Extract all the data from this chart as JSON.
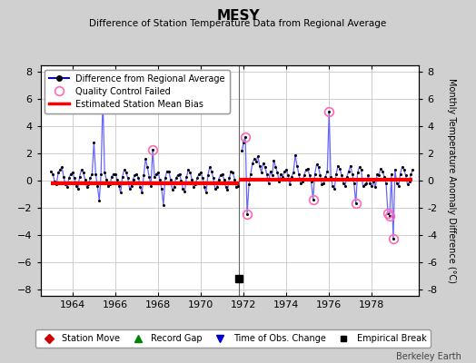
{
  "title": "MESY",
  "subtitle": "Difference of Station Temperature Data from Regional Average",
  "ylabel_right": "Monthly Temperature Anomaly Difference (°C)",
  "xlim": [
    1962.5,
    1980.2
  ],
  "ylim": [
    -8.5,
    8.5
  ],
  "yticks": [
    -8,
    -6,
    -4,
    -2,
    0,
    2,
    4,
    6,
    8
  ],
  "xticks": [
    1964,
    1966,
    1968,
    1970,
    1972,
    1974,
    1976,
    1978
  ],
  "background_color": "#d0d0d0",
  "plot_bg_color": "#ffffff",
  "grid_color": "#c8c8c8",
  "line_color": "#6666ff",
  "dot_color": "#000000",
  "bias_color": "#ff0000",
  "bias_value_seg1": -0.2,
  "bias_value_seg2": 0.1,
  "break_x": 1971.79,
  "empirical_break_x": 1971.79,
  "empirical_break_y": -7.2,
  "time_series": [
    [
      1963.0,
      0.7
    ],
    [
      1963.083,
      0.5
    ],
    [
      1963.167,
      -0.1
    ],
    [
      1963.25,
      -0.3
    ],
    [
      1963.333,
      0.6
    ],
    [
      1963.417,
      0.8
    ],
    [
      1963.5,
      1.0
    ],
    [
      1963.583,
      0.3
    ],
    [
      1963.667,
      -0.3
    ],
    [
      1963.75,
      -0.5
    ],
    [
      1963.833,
      0.2
    ],
    [
      1963.917,
      0.5
    ],
    [
      1964.0,
      0.6
    ],
    [
      1964.083,
      0.2
    ],
    [
      1964.167,
      -0.4
    ],
    [
      1964.25,
      -0.6
    ],
    [
      1964.333,
      0.3
    ],
    [
      1964.417,
      0.8
    ],
    [
      1964.5,
      0.6
    ],
    [
      1964.583,
      0.1
    ],
    [
      1964.667,
      -0.5
    ],
    [
      1964.75,
      -0.3
    ],
    [
      1964.833,
      0.2
    ],
    [
      1964.917,
      0.5
    ],
    [
      1965.0,
      2.8
    ],
    [
      1965.083,
      0.5
    ],
    [
      1965.167,
      -0.4
    ],
    [
      1965.25,
      -1.5
    ],
    [
      1965.333,
      0.5
    ],
    [
      1965.417,
      6.2
    ],
    [
      1965.5,
      0.6
    ],
    [
      1965.583,
      0.1
    ],
    [
      1965.667,
      -0.4
    ],
    [
      1965.75,
      -0.3
    ],
    [
      1965.833,
      0.3
    ],
    [
      1965.917,
      0.5
    ],
    [
      1966.0,
      0.5
    ],
    [
      1966.083,
      0.1
    ],
    [
      1966.167,
      -0.4
    ],
    [
      1966.25,
      -0.9
    ],
    [
      1966.333,
      0.3
    ],
    [
      1966.417,
      0.8
    ],
    [
      1966.5,
      0.6
    ],
    [
      1966.583,
      0.2
    ],
    [
      1966.667,
      -0.6
    ],
    [
      1966.75,
      -0.4
    ],
    [
      1966.833,
      0.1
    ],
    [
      1966.917,
      0.4
    ],
    [
      1967.0,
      0.5
    ],
    [
      1967.083,
      0.2
    ],
    [
      1967.167,
      -0.5
    ],
    [
      1967.25,
      -0.9
    ],
    [
      1967.333,
      0.4
    ],
    [
      1967.417,
      1.6
    ],
    [
      1967.5,
      1.0
    ],
    [
      1967.583,
      0.3
    ],
    [
      1967.667,
      -0.4
    ],
    [
      1967.75,
      2.3
    ],
    [
      1967.833,
      0.3
    ],
    [
      1967.917,
      0.5
    ],
    [
      1968.0,
      0.6
    ],
    [
      1968.083,
      0.1
    ],
    [
      1968.167,
      -0.6
    ],
    [
      1968.25,
      -1.8
    ],
    [
      1968.333,
      0.2
    ],
    [
      1968.417,
      0.7
    ],
    [
      1968.5,
      0.7
    ],
    [
      1968.583,
      0.1
    ],
    [
      1968.667,
      -0.7
    ],
    [
      1968.75,
      -0.5
    ],
    [
      1968.833,
      0.2
    ],
    [
      1968.917,
      0.4
    ],
    [
      1969.0,
      0.5
    ],
    [
      1969.083,
      0.0
    ],
    [
      1969.167,
      -0.6
    ],
    [
      1969.25,
      -0.8
    ],
    [
      1969.333,
      0.3
    ],
    [
      1969.417,
      0.8
    ],
    [
      1969.5,
      0.6
    ],
    [
      1969.583,
      0.1
    ],
    [
      1969.667,
      -0.5
    ],
    [
      1969.75,
      -0.3
    ],
    [
      1969.833,
      0.2
    ],
    [
      1969.917,
      0.5
    ],
    [
      1970.0,
      0.6
    ],
    [
      1970.083,
      0.2
    ],
    [
      1970.167,
      -0.5
    ],
    [
      1970.25,
      -0.9
    ],
    [
      1970.333,
      0.4
    ],
    [
      1970.417,
      1.0
    ],
    [
      1970.5,
      0.7
    ],
    [
      1970.583,
      0.2
    ],
    [
      1970.667,
      -0.6
    ],
    [
      1970.75,
      -0.5
    ],
    [
      1970.833,
      0.1
    ],
    [
      1970.917,
      0.4
    ],
    [
      1971.0,
      0.5
    ],
    [
      1971.083,
      0.1
    ],
    [
      1971.167,
      -0.5
    ],
    [
      1971.25,
      -0.7
    ],
    [
      1971.333,
      0.2
    ],
    [
      1971.417,
      0.7
    ],
    [
      1971.5,
      0.6
    ],
    [
      1971.583,
      0.1
    ],
    [
      1971.667,
      -0.5
    ],
    [
      1971.75,
      -0.4
    ],
    [
      1971.917,
      2.2
    ],
    [
      1972.0,
      2.8
    ],
    [
      1972.083,
      3.2
    ],
    [
      1972.167,
      -2.5
    ],
    [
      1972.25,
      -0.3
    ],
    [
      1972.333,
      0.5
    ],
    [
      1972.417,
      1.3
    ],
    [
      1972.5,
      1.6
    ],
    [
      1972.583,
      1.4
    ],
    [
      1972.667,
      1.8
    ],
    [
      1972.75,
      1.1
    ],
    [
      1972.833,
      0.6
    ],
    [
      1972.917,
      1.3
    ],
    [
      1973.0,
      1.0
    ],
    [
      1973.083,
      0.5
    ],
    [
      1973.167,
      -0.2
    ],
    [
      1973.25,
      0.7
    ],
    [
      1973.333,
      0.4
    ],
    [
      1973.417,
      1.5
    ],
    [
      1973.5,
      1.0
    ],
    [
      1973.583,
      0.6
    ],
    [
      1973.667,
      -0.1
    ],
    [
      1973.75,
      0.5
    ],
    [
      1973.833,
      0.3
    ],
    [
      1973.917,
      0.7
    ],
    [
      1974.0,
      0.8
    ],
    [
      1974.083,
      0.4
    ],
    [
      1974.167,
      -0.3
    ],
    [
      1974.25,
      0.3
    ],
    [
      1974.333,
      0.6
    ],
    [
      1974.417,
      1.9
    ],
    [
      1974.5,
      1.1
    ],
    [
      1974.583,
      0.5
    ],
    [
      1974.667,
      -0.2
    ],
    [
      1974.75,
      -0.1
    ],
    [
      1974.833,
      0.4
    ],
    [
      1974.917,
      0.8
    ],
    [
      1975.0,
      0.9
    ],
    [
      1975.083,
      0.4
    ],
    [
      1975.167,
      -0.1
    ],
    [
      1975.25,
      -1.4
    ],
    [
      1975.333,
      0.5
    ],
    [
      1975.417,
      1.2
    ],
    [
      1975.5,
      1.0
    ],
    [
      1975.583,
      0.4
    ],
    [
      1975.667,
      -0.3
    ],
    [
      1975.75,
      -0.2
    ],
    [
      1975.833,
      0.3
    ],
    [
      1975.917,
      0.7
    ],
    [
      1976.0,
      5.1
    ],
    [
      1976.083,
      0.3
    ],
    [
      1976.167,
      -0.4
    ],
    [
      1976.25,
      -0.6
    ],
    [
      1976.333,
      0.5
    ],
    [
      1976.417,
      1.1
    ],
    [
      1976.5,
      0.9
    ],
    [
      1976.583,
      0.4
    ],
    [
      1976.667,
      -0.2
    ],
    [
      1976.75,
      -0.4
    ],
    [
      1976.833,
      0.3
    ],
    [
      1976.917,
      0.7
    ],
    [
      1977.0,
      1.1
    ],
    [
      1977.083,
      0.5
    ],
    [
      1977.167,
      -0.2
    ],
    [
      1977.25,
      -1.7
    ],
    [
      1977.333,
      0.6
    ],
    [
      1977.417,
      1.0
    ],
    [
      1977.5,
      0.8
    ],
    [
      1977.583,
      -0.4
    ],
    [
      1977.667,
      -0.3
    ],
    [
      1977.75,
      -0.2
    ],
    [
      1977.833,
      0.4
    ],
    [
      1977.917,
      -0.2
    ],
    [
      1978.0,
      -0.4
    ],
    [
      1978.083,
      -0.1
    ],
    [
      1978.167,
      -0.5
    ],
    [
      1978.25,
      0.5
    ],
    [
      1978.333,
      0.4
    ],
    [
      1978.417,
      0.9
    ],
    [
      1978.5,
      0.7
    ],
    [
      1978.583,
      0.3
    ],
    [
      1978.667,
      -0.2
    ],
    [
      1978.75,
      -2.4
    ],
    [
      1978.833,
      -2.6
    ],
    [
      1978.917,
      0.5
    ],
    [
      1979.0,
      -4.3
    ],
    [
      1979.083,
      0.8
    ],
    [
      1979.167,
      -0.2
    ],
    [
      1979.25,
      -0.4
    ],
    [
      1979.333,
      0.5
    ],
    [
      1979.417,
      1.0
    ],
    [
      1979.5,
      0.8
    ],
    [
      1979.583,
      0.4
    ],
    [
      1979.667,
      -0.3
    ],
    [
      1979.75,
      -0.1
    ],
    [
      1979.833,
      0.5
    ],
    [
      1979.917,
      0.8
    ]
  ],
  "qc_failed": [
    [
      1965.417,
      6.2
    ],
    [
      1967.75,
      2.3
    ],
    [
      1972.083,
      3.2
    ],
    [
      1972.167,
      -2.5
    ],
    [
      1975.25,
      -1.4
    ],
    [
      1976.0,
      5.1
    ],
    [
      1977.25,
      -1.7
    ],
    [
      1978.75,
      -2.4
    ],
    [
      1978.833,
      -2.6
    ],
    [
      1979.0,
      -4.3
    ]
  ],
  "berkeley_earth_text": "Berkeley Earth"
}
